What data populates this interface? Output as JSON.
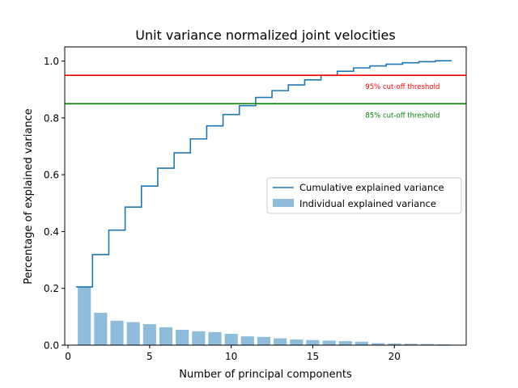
{
  "chart_data": {
    "type": "bar",
    "title": "Unit variance normalized joint velocities",
    "xlabel": "Number of principal components",
    "ylabel": "Percentage of explained variance",
    "xlim": [
      -0.2,
      24.4
    ],
    "ylim": [
      0.0,
      1.05
    ],
    "xticks": [
      0,
      5,
      10,
      15,
      20
    ],
    "yticks": [
      0.0,
      0.2,
      0.4,
      0.6,
      0.8,
      1.0
    ],
    "xtick_labels": [
      "0",
      "5",
      "10",
      "15",
      "20"
    ],
    "ytick_labels": [
      "0.0",
      "0.2",
      "0.4",
      "0.6",
      "0.8",
      "1.0"
    ],
    "grid": false,
    "legend_position": "center-right",
    "series": [
      {
        "name": "Individual explained variance",
        "kind": "bar",
        "color": "#8fbcdb",
        "x": [
          1,
          2,
          3,
          4,
          5,
          6,
          7,
          8,
          9,
          10,
          11,
          12,
          13,
          14,
          15,
          16,
          17,
          18,
          19,
          20,
          21,
          22,
          23
        ],
        "values": [
          0.205,
          0.114,
          0.086,
          0.081,
          0.074,
          0.063,
          0.054,
          0.049,
          0.046,
          0.04,
          0.031,
          0.029,
          0.024,
          0.02,
          0.018,
          0.016,
          0.014,
          0.012,
          0.007,
          0.006,
          0.005,
          0.004,
          0.003
        ]
      },
      {
        "name": "Cumulative explained variance",
        "kind": "step",
        "color": "#1f77b4",
        "x": [
          1,
          2,
          3,
          4,
          5,
          6,
          7,
          8,
          9,
          10,
          11,
          12,
          13,
          14,
          15,
          16,
          17,
          18,
          19,
          20,
          21,
          22,
          23
        ],
        "values": [
          0.205,
          0.319,
          0.405,
          0.486,
          0.56,
          0.623,
          0.677,
          0.726,
          0.772,
          0.812,
          0.843,
          0.872,
          0.896,
          0.916,
          0.934,
          0.95,
          0.964,
          0.976,
          0.983,
          0.989,
          0.994,
          0.998,
          1.001
        ]
      }
    ],
    "thresholds": [
      {
        "label": "95% cut-off threshold",
        "value": 0.95,
        "color": "#ff0000"
      },
      {
        "label": "85% cut-off threshold",
        "value": 0.85,
        "color": "#008000"
      }
    ]
  }
}
